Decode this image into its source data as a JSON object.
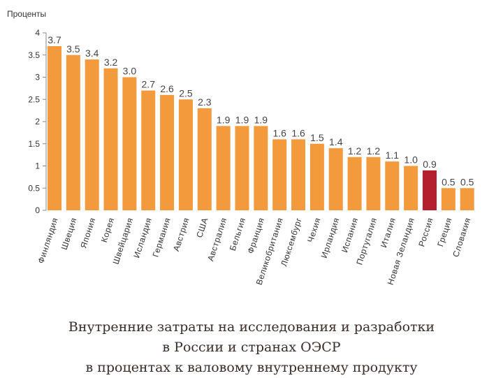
{
  "colors": {
    "bar": "#f39a3d",
    "highlight": "#b5202e",
    "value_label": "#444444",
    "axis_text": "#333333",
    "caption_text": "#3a2d28"
  },
  "chart_data": {
    "type": "bar",
    "ylabel": "Проценты",
    "ylim": [
      0,
      4
    ],
    "yticks": [
      {
        "value": 0,
        "label": "0"
      },
      {
        "value": 0.5,
        "label": "0.5"
      },
      {
        "value": 1,
        "label": "1"
      },
      {
        "value": 1.5,
        "label": "1.5"
      },
      {
        "value": 2,
        "label": "2"
      },
      {
        "value": 2.5,
        "label": "2.5"
      },
      {
        "value": 3,
        "label": "3"
      },
      {
        "value": 3.5,
        "label": "3.5"
      },
      {
        "value": 4,
        "label": "4"
      }
    ],
    "grid": false,
    "categories": [
      "Финляндия",
      "Швеция",
      "Япония",
      "Корея",
      "Швейцария",
      "Исландия",
      "Германия",
      "Австрия",
      "США",
      "Австралия",
      "Бельгия",
      "Франция",
      "Великобритания",
      "Люксембург",
      "Чехия",
      "Ирландия",
      "Испания",
      "Португалия",
      "Италия",
      "Новая Зеландия",
      "Россия",
      "Греция",
      "Словакия"
    ],
    "values": [
      3.7,
      3.5,
      3.4,
      3.2,
      3.0,
      2.7,
      2.6,
      2.5,
      2.3,
      1.9,
      1.9,
      1.9,
      1.6,
      1.6,
      1.5,
      1.4,
      1.2,
      1.2,
      1.1,
      1.0,
      0.9,
      0.5,
      0.5
    ],
    "value_labels": [
      "3.7",
      "3.5",
      "3.4",
      "3.2",
      "3.0",
      "2.7",
      "2.6",
      "2.5",
      "2.3",
      "1.9",
      "1.9",
      "1.9",
      "1.6",
      "1.6",
      "1.5",
      "1.4",
      "1.2",
      "1.2",
      "1.1",
      "1.0",
      "0.9",
      "0.5",
      "0.5"
    ],
    "highlight_category": "Россия"
  },
  "caption": {
    "line1": "Внутренние затраты на исследования и разработки",
    "line2": "в России и странах ОЭСР",
    "line3": "в процентах к валовому внутреннему продукту"
  }
}
